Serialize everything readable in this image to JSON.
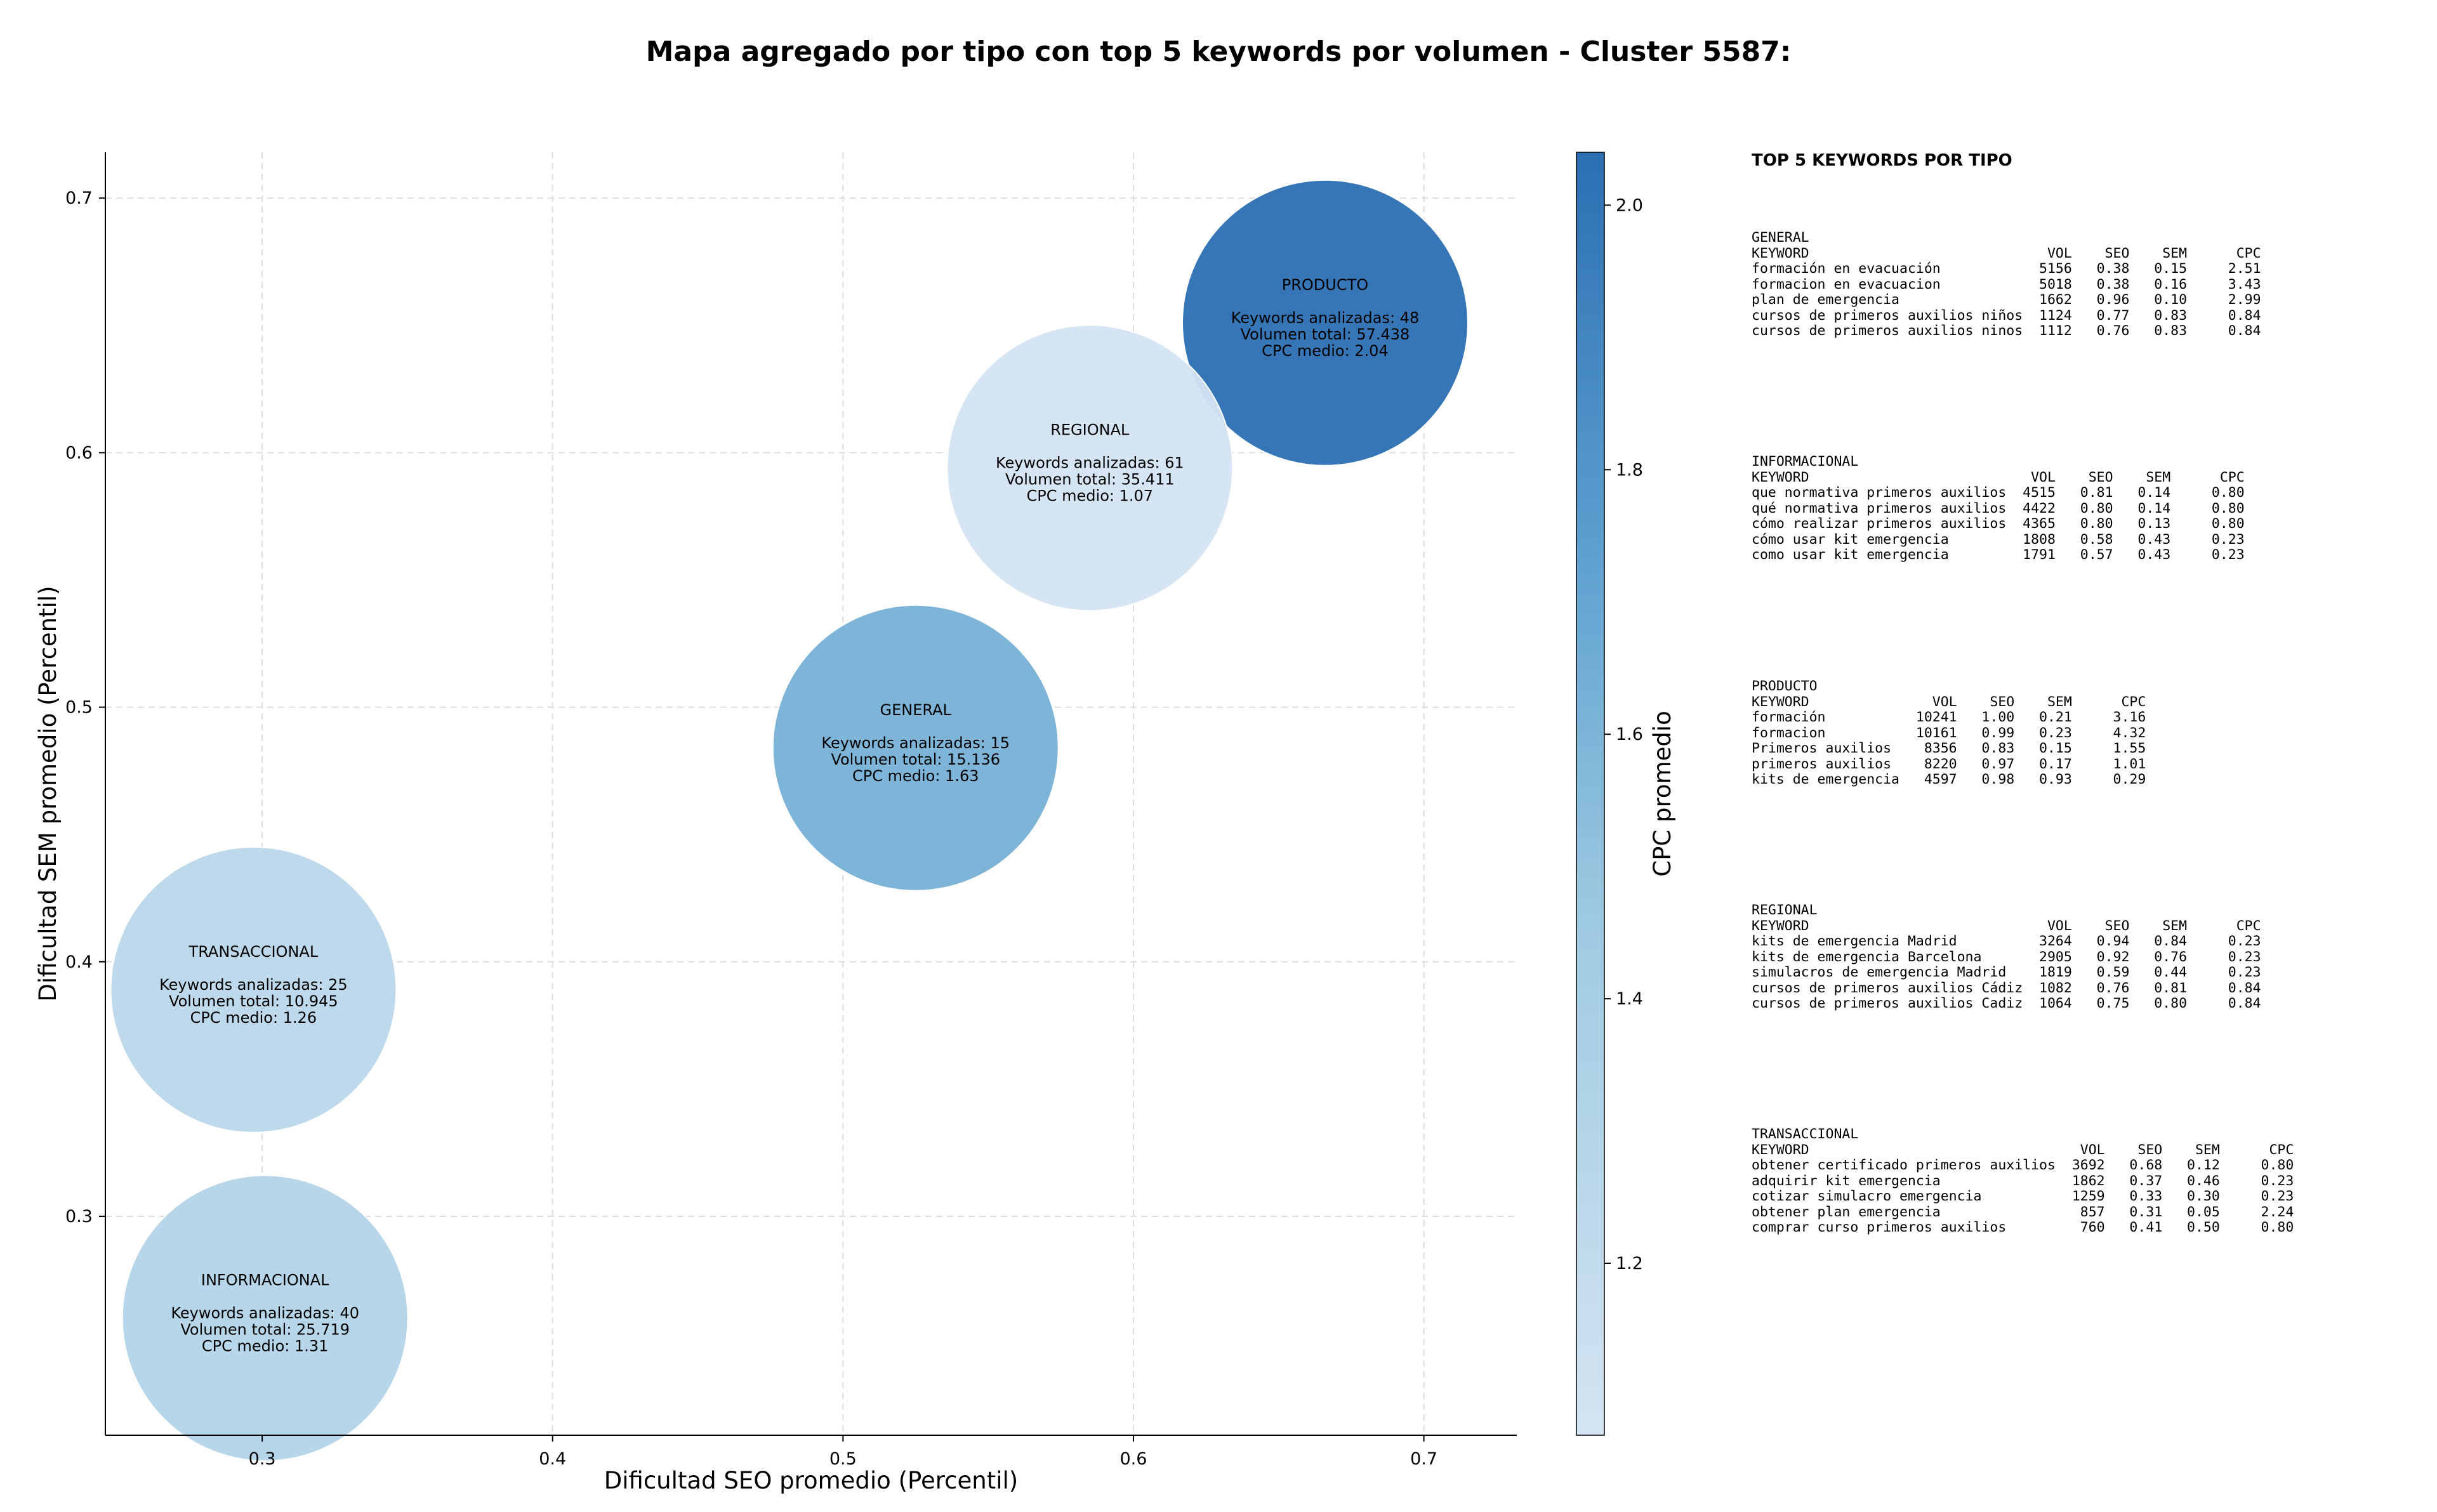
{
  "chart_data": {
    "type": "scatter",
    "variant": "bubble",
    "title": "Mapa agregado por tipo con top 5 keywords por volumen - Cluster 5587:",
    "xlabel": "Dificultad SEO promedio (Percentil)",
    "ylabel": "Dificultad SEM promedio (Percentil)",
    "xlim": [
      0.246,
      0.732
    ],
    "ylim": [
      0.214,
      0.718
    ],
    "xticks": [
      "0.3",
      "0.4",
      "0.5",
      "0.6",
      "0.7"
    ],
    "yticks": [
      "0.3",
      "0.4",
      "0.5",
      "0.6",
      "0.7"
    ],
    "grid": true,
    "colorbar": {
      "label": "CPC promedio",
      "range": [
        1.07,
        2.04
      ],
      "ticks": [
        "1.2",
        "1.4",
        "1.6",
        "1.8",
        "2.0"
      ],
      "colors": [
        "#d4e4f3",
        "#2c6fb2"
      ]
    },
    "bubble_label_templates": {
      "keywords": "Keywords analizadas: ",
      "volume": "Volumen total: ",
      "cpc": "CPC medio: "
    },
    "points": [
      {
        "name": "PRODUCTO",
        "x": 0.666,
        "y": 0.651,
        "keywords": "48",
        "volume": "57.438",
        "cpc": "2.04",
        "cpc_value": 2.04
      },
      {
        "name": "REGIONAL",
        "x": 0.585,
        "y": 0.594,
        "keywords": "61",
        "volume": "35.411",
        "cpc": "1.07",
        "cpc_value": 1.07
      },
      {
        "name": "GENERAL",
        "x": 0.525,
        "y": 0.484,
        "keywords": "15",
        "volume": "15.136",
        "cpc": "1.63",
        "cpc_value": 1.63
      },
      {
        "name": "TRANSACCIONAL",
        "x": 0.297,
        "y": 0.389,
        "keywords": "25",
        "volume": "10.945",
        "cpc": "1.26",
        "cpc_value": 1.26
      },
      {
        "name": "INFORMACIONAL",
        "x": 0.301,
        "y": 0.26,
        "keywords": "40",
        "volume": "25.719",
        "cpc": "1.31",
        "cpc_value": 1.31
      }
    ]
  },
  "side_panel": {
    "title": "TOP 5 KEYWORDS POR TIPO",
    "blocks": [
      {
        "name": "GENERAL",
        "lines": [
          "GENERAL",
          "KEYWORD                             VOL    SEO    SEM      CPC",
          "formación en evacuación            5156   0.38   0.15     2.51",
          "formacion en evacuacion            5018   0.38   0.16     3.43",
          "plan de emergencia                 1662   0.96   0.10     2.99",
          "cursos de primeros auxilios niños  1124   0.77   0.83     0.84",
          "cursos de primeros auxilios ninos  1112   0.76   0.83     0.84"
        ]
      },
      {
        "name": "INFORMACIONAL",
        "lines": [
          "INFORMACIONAL",
          "KEYWORD                           VOL    SEO    SEM      CPC",
          "que normativa primeros auxilios  4515   0.81   0.14     0.80",
          "qué normativa primeros auxilios  4422   0.80   0.14     0.80",
          "cómo realizar primeros auxilios  4365   0.80   0.13     0.80",
          "cómo usar kit emergencia         1808   0.58   0.43     0.23",
          "como usar kit emergencia         1791   0.57   0.43     0.23"
        ]
      },
      {
        "name": "PRODUCTO",
        "lines": [
          "PRODUCTO",
          "KEYWORD               VOL    SEO    SEM      CPC",
          "formación           10241   1.00   0.21     3.16",
          "formacion           10161   0.99   0.23     4.32",
          "Primeros auxilios    8356   0.83   0.15     1.55",
          "primeros auxilios    8220   0.97   0.17     1.01",
          "kits de emergencia   4597   0.98   0.93     0.29"
        ]
      },
      {
        "name": "REGIONAL",
        "lines": [
          "REGIONAL",
          "KEYWORD                             VOL    SEO    SEM      CPC",
          "kits de emergencia Madrid          3264   0.94   0.84     0.23",
          "kits de emergencia Barcelona       2905   0.92   0.76     0.23",
          "simulacros de emergencia Madrid    1819   0.59   0.44     0.23",
          "cursos de primeros auxilios Cádiz  1082   0.76   0.81     0.84",
          "cursos de primeros auxilios Cadiz  1064   0.75   0.80     0.84"
        ]
      },
      {
        "name": "TRANSACCIONAL",
        "lines": [
          "TRANSACCIONAL",
          "KEYWORD                                 VOL    SEO    SEM      CPC",
          "obtener certificado primeros auxilios  3692   0.68   0.12     0.80",
          "adquirir kit emergencia                1862   0.37   0.46     0.23",
          "cotizar simulacro emergencia           1259   0.33   0.30     0.23",
          "obtener plan emergencia                 857   0.31   0.05     2.24",
          "comprar curso primeros auxilios         760   0.41   0.50     0.80"
        ]
      }
    ]
  }
}
